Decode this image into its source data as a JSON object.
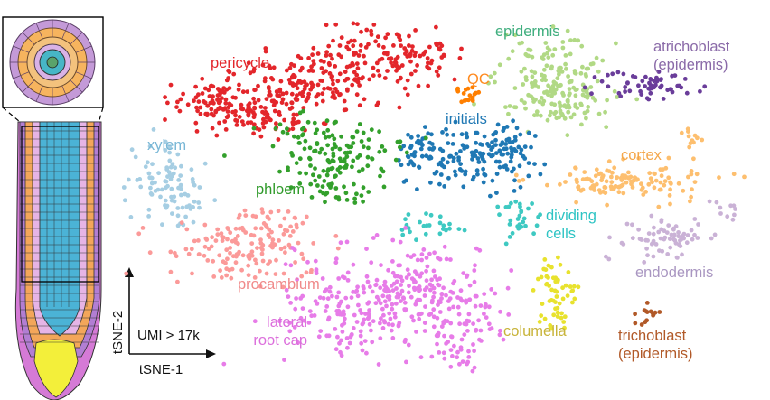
{
  "chart_data": {
    "type": "scatter",
    "xlabel": "tSNE-1",
    "ylabel": "tSNE-2",
    "annotation": "UMI > 17k",
    "colors": {
      "pericycle": "#e3262b",
      "epidermis": "#b1d985",
      "atrichoblast": "#6a3d9a",
      "QC": "#ff7f00",
      "initials": "#1f78b4",
      "xylem": "#a6cee3",
      "phloem": "#33a02c",
      "cortex": "#fdbf6f",
      "dividing": "#3ec9c2",
      "procambium": "#fb9a99",
      "endodermis": "#cab2d6",
      "lateral_root_cap": "#e77ce8",
      "columella": "#e8e22e",
      "trichoblast": "#b15928"
    },
    "clusters": [
      {
        "id": "pericycle",
        "label_lines": [
          "pericycle"
        ],
        "label_color": "#e3262b"
      },
      {
        "id": "epidermis",
        "label_lines": [
          "epidermis"
        ],
        "label_color": "#3fae7e"
      },
      {
        "id": "atrichoblast",
        "label_lines": [
          "atrichoblast",
          "(epidermis)"
        ],
        "label_color": "#8a6aa8"
      },
      {
        "id": "QC",
        "label_lines": [
          "QC"
        ],
        "label_color": "#ff8a1f"
      },
      {
        "id": "initials",
        "label_lines": [
          "initials"
        ],
        "label_color": "#1f78b4"
      },
      {
        "id": "xylem",
        "label_lines": [
          "xylem"
        ],
        "label_color": "#79b7d6"
      },
      {
        "id": "phloem",
        "label_lines": [
          "phloem"
        ],
        "label_color": "#2f9a2a"
      },
      {
        "id": "cortex",
        "label_lines": [
          "cortex"
        ],
        "label_color": "#f4a64a"
      },
      {
        "id": "dividing",
        "label_lines": [
          "dividing",
          "cells"
        ],
        "label_color": "#2ec4c4"
      },
      {
        "id": "procambium",
        "label_lines": [
          "procambium"
        ],
        "label_color": "#f08a8a"
      },
      {
        "id": "endodermis",
        "label_lines": [
          "endodermis"
        ],
        "label_color": "#a996c1"
      },
      {
        "id": "lateral_root_cap",
        "label_lines": [
          "lateral",
          "root cap"
        ],
        "label_color": "#dc6fdc"
      },
      {
        "id": "columella",
        "label_lines": [
          "columella"
        ],
        "label_color": "#c8b43a"
      },
      {
        "id": "trichoblast",
        "label_lines": [
          "trichoblast",
          "(epidermis)"
        ],
        "label_color": "#b15928"
      }
    ]
  }
}
